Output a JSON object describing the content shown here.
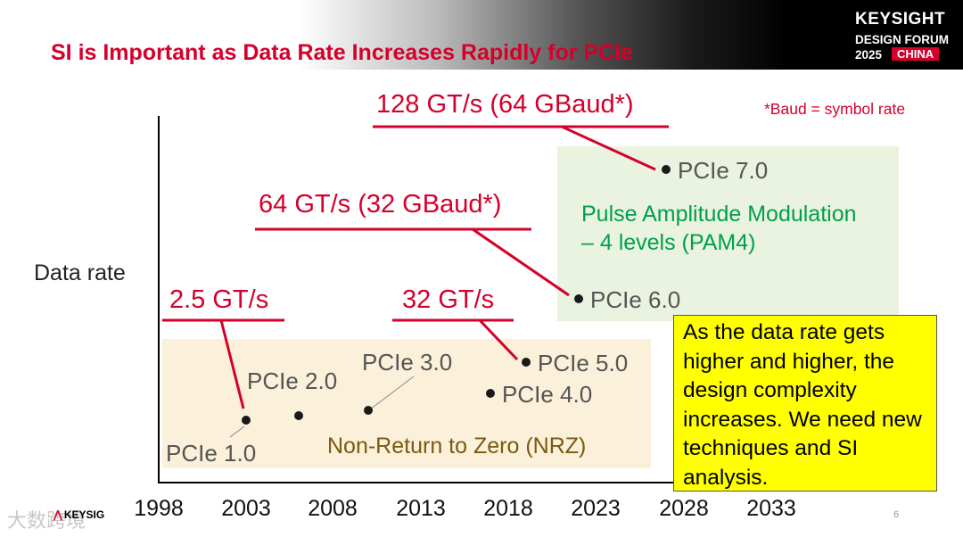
{
  "header": {
    "title": "SI is Important as Data Rate Increases Rapidly for PCIe",
    "logo": {
      "line1": "KEYSIGHT",
      "line2": "DESIGN FORUM",
      "year": "2025",
      "region": "CHINA"
    }
  },
  "colors": {
    "title_red": "#d4002b",
    "pam4_bg": "#eaf3e0",
    "pam4_text": "#00a04a",
    "nrz_bg": "#fbf0d9",
    "nrz_text": "#7a5a10",
    "callout_bg": "#ffff00"
  },
  "chart_data": {
    "type": "scatter",
    "title": "",
    "ylabel": "Data rate",
    "xlabel": "",
    "x_ticks": [
      "1998",
      "2003",
      "2008",
      "2013",
      "2018",
      "2023",
      "2028",
      "2033"
    ],
    "xlim": [
      1998,
      2033
    ],
    "points": [
      {
        "label": "PCIe 1.0",
        "year": 2003,
        "level": 1
      },
      {
        "label": "PCIe 2.0",
        "year": 2006,
        "level": 2
      },
      {
        "label": "PCIe 3.0",
        "year": 2010,
        "level": 3
      },
      {
        "label": "PCIe 4.0",
        "year": 2017,
        "level": 4
      },
      {
        "label": "PCIe 5.0",
        "year": 2019,
        "level": 5
      },
      {
        "label": "PCIe 6.0",
        "year": 2022,
        "level": 6
      },
      {
        "label": "PCIe 7.0",
        "year": 2026,
        "level": 7
      }
    ],
    "annotations": [
      {
        "text": "2.5 GT/s",
        "target": "PCIe 1.0"
      },
      {
        "text": "32 GT/s",
        "target": "PCIe 5.0"
      },
      {
        "text": "64 GT/s (32 GBaud*)",
        "target": "PCIe 6.0"
      },
      {
        "text": "128 GT/s (64 GBaud*)",
        "target": "PCIe 7.0"
      }
    ],
    "footnote": "*Baud = symbol rate",
    "regions": [
      {
        "name": "nrz",
        "label": "Non-Return to Zero (NRZ)"
      },
      {
        "name": "pam4",
        "label_line1": "Pulse Amplitude Modulation",
        "label_line2": "– 4 levels (PAM4)"
      }
    ]
  },
  "callout": {
    "text": "As the data rate gets higher and higher, the design complexity increases. We need new techniques and SI analysis."
  },
  "footer": {
    "brand": "KEYSIG",
    "watermark": "大数跨境",
    "page_number": "6"
  }
}
